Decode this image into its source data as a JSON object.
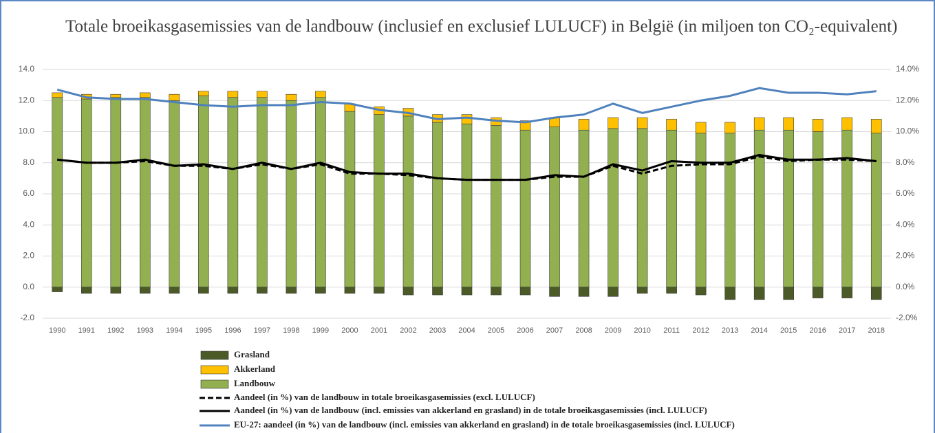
{
  "chart_data": {
    "type": "bar",
    "title": "Totale broeikasgasemissies van de landbouw (inclusief en exclusief LULUCF) in België (in miljoen ton CO₂-equivalent)",
    "categories": [
      "1990",
      "1991",
      "1992",
      "1993",
      "1994",
      "1995",
      "1996",
      "1997",
      "1998",
      "1999",
      "2000",
      "2001",
      "2002",
      "2003",
      "2004",
      "2005",
      "2006",
      "2007",
      "2008",
      "2009",
      "2010",
      "2011",
      "2012",
      "2013",
      "2014",
      "2015",
      "2016",
      "2017",
      "2018"
    ],
    "series": [
      {
        "name": "Grasland",
        "type": "bar",
        "color": "#4b5a26",
        "values": [
          -0.3,
          -0.4,
          -0.4,
          -0.4,
          -0.4,
          -0.4,
          -0.4,
          -0.4,
          -0.4,
          -0.4,
          -0.4,
          -0.4,
          -0.5,
          -0.5,
          -0.5,
          -0.5,
          -0.5,
          -0.6,
          -0.6,
          -0.6,
          -0.4,
          -0.4,
          -0.5,
          -0.8,
          -0.8,
          -0.8,
          -0.7,
          -0.7,
          -0.8
        ]
      },
      {
        "name": "Akkerland",
        "type": "bar",
        "color": "#ffc000",
        "values": [
          0.3,
          0.3,
          0.2,
          0.3,
          0.4,
          0.3,
          0.4,
          0.4,
          0.4,
          0.4,
          0.5,
          0.5,
          0.5,
          0.5,
          0.6,
          0.5,
          0.6,
          0.6,
          0.7,
          0.7,
          0.7,
          0.7,
          0.7,
          0.7,
          0.8,
          0.8,
          0.8,
          0.8,
          0.9
        ]
      },
      {
        "name": "Landbouw",
        "type": "bar",
        "color": "#92b050",
        "values": [
          12.2,
          12.1,
          12.2,
          12.2,
          12.0,
          12.3,
          12.2,
          12.2,
          12.0,
          12.2,
          11.3,
          11.1,
          11.0,
          10.6,
          10.5,
          10.4,
          10.1,
          10.3,
          10.1,
          10.2,
          10.2,
          10.1,
          9.9,
          9.9,
          10.1,
          10.1,
          10.0,
          10.1,
          9.9
        ]
      },
      {
        "name": "Aandeel (in %) van de landbouw in totale broeikasgasemissies (excl. LULUCF)",
        "type": "line",
        "axis": "y2",
        "dashed": true,
        "color": "#000000",
        "values": [
          8.2,
          8.0,
          8.0,
          8.1,
          7.8,
          7.8,
          7.6,
          7.9,
          7.6,
          7.9,
          7.3,
          7.3,
          7.2,
          7.0,
          6.9,
          6.9,
          6.9,
          7.1,
          7.1,
          7.8,
          7.3,
          7.8,
          7.9,
          7.9,
          8.4,
          8.1,
          8.2,
          8.2,
          8.1
        ]
      },
      {
        "name": "Aandeel (in %) van de landbouw (incl. emissies van akkerland en grasland) in de totale broeikasgasemissies (incl. LULUCF)",
        "type": "line",
        "axis": "y2",
        "color": "#000000",
        "values": [
          8.2,
          8.0,
          8.0,
          8.2,
          7.8,
          7.9,
          7.6,
          8.0,
          7.6,
          8.0,
          7.4,
          7.3,
          7.3,
          7.0,
          6.9,
          6.9,
          6.9,
          7.2,
          7.1,
          7.9,
          7.5,
          8.1,
          8.0,
          8.0,
          8.5,
          8.2,
          8.2,
          8.3,
          8.1
        ]
      },
      {
        "name": "EU-27: aandeel (in %) van de landbouw (incl. emissies van akkerland en grasland) in de totale broeikasgasemissies (incl. LULUCF)",
        "type": "line",
        "axis": "y2",
        "color": "#4f81bd",
        "values": [
          12.7,
          12.2,
          12.1,
          12.1,
          11.9,
          11.7,
          11.6,
          11.7,
          11.7,
          11.9,
          11.8,
          11.4,
          11.2,
          10.8,
          10.9,
          10.7,
          10.6,
          10.9,
          11.1,
          11.8,
          11.2,
          11.6,
          12.0,
          12.3,
          12.8,
          12.5,
          12.5,
          12.4,
          12.6
        ]
      }
    ],
    "ylim": [
      -2,
      14
    ],
    "yticks": [
      {
        "value": -2,
        "label": "-2.0"
      },
      {
        "value": 0,
        "label": "0.0"
      },
      {
        "value": 2,
        "label": "2.0"
      },
      {
        "value": 4,
        "label": "4.0"
      },
      {
        "value": 6,
        "label": "6.0"
      },
      {
        "value": 8,
        "label": "8.0"
      },
      {
        "value": 10,
        "label": "10.0"
      },
      {
        "value": 12,
        "label": "12.0"
      },
      {
        "value": 14,
        "label": "14.0"
      }
    ],
    "y2lim": [
      -2,
      14
    ],
    "y2ticks": [
      {
        "value": -2,
        "label": "-2.0%"
      },
      {
        "value": 0,
        "label": "0.0%"
      },
      {
        "value": 2,
        "label": "2.0%"
      },
      {
        "value": 4,
        "label": "4.0%"
      },
      {
        "value": 6,
        "label": "6.0%"
      },
      {
        "value": 8,
        "label": "8.0%"
      },
      {
        "value": 10,
        "label": "10.0%"
      },
      {
        "value": 12,
        "label": "12.0%"
      },
      {
        "value": 14,
        "label": "14.0%"
      }
    ],
    "grid": true,
    "legend": "bottom"
  }
}
